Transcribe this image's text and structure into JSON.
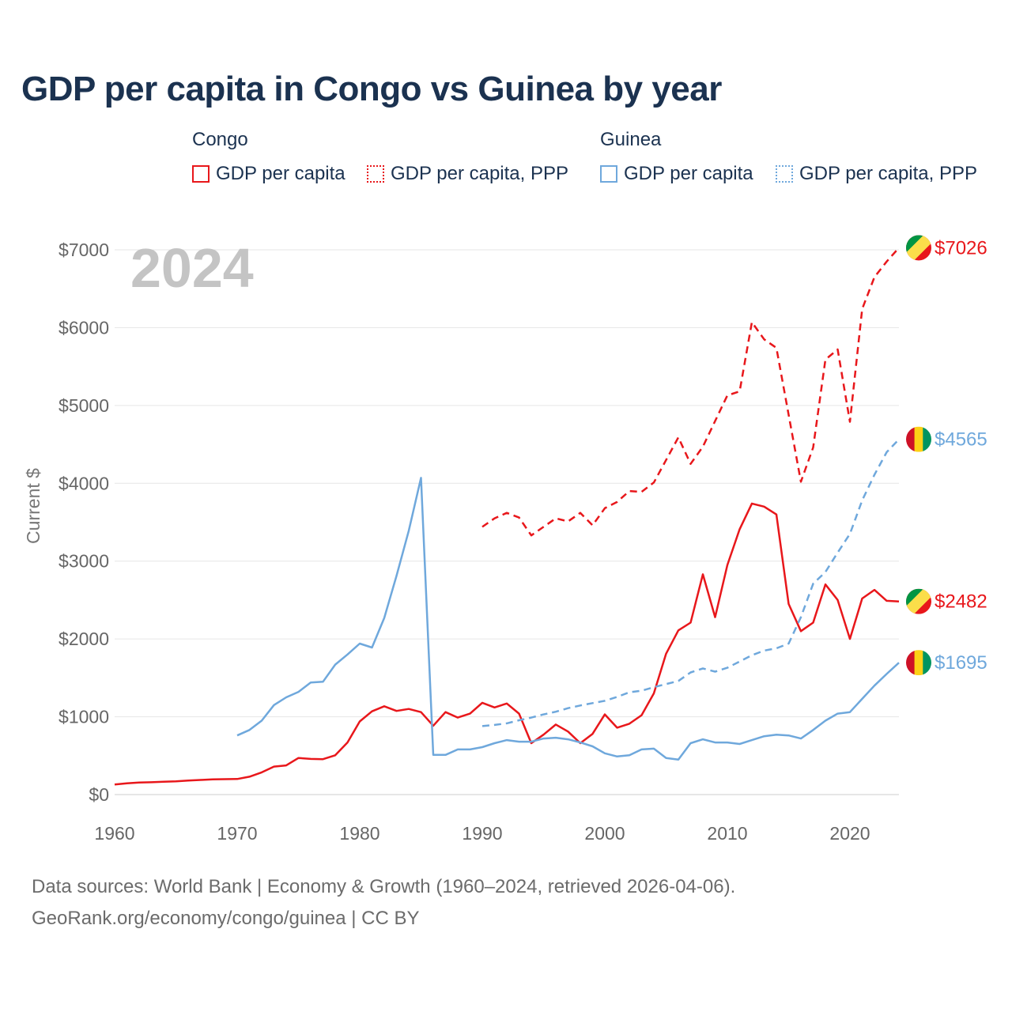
{
  "title": "GDP per capita in Congo vs Guinea by year",
  "legend": {
    "groups": [
      {
        "name": "Congo",
        "items": [
          {
            "label": "GDP per capita",
            "color": "#e8171b",
            "style": "solid"
          },
          {
            "label": "GDP per capita, PPP",
            "color": "#e8171b",
            "style": "dotted"
          }
        ]
      },
      {
        "name": "Guinea",
        "items": [
          {
            "label": "GDP per capita",
            "color": "#6fa8dc",
            "style": "solid"
          },
          {
            "label": "GDP per capita, PPP",
            "color": "#6fa8dc",
            "style": "dotted"
          }
        ]
      }
    ]
  },
  "footer": {
    "line1": "Data sources: World Bank | Economy & Growth (1960–2024, retrieved 2026-04-06).",
    "line2": "GeoRank.org/economy/congo/guinea | CC BY"
  },
  "chart_data": {
    "type": "line",
    "year_label": "2024",
    "ylabel": "Current $",
    "xlim": [
      1960,
      2024
    ],
    "ylim": [
      0,
      7000
    ],
    "x_ticks": [
      1960,
      1970,
      1980,
      1990,
      2000,
      2010,
      2020
    ],
    "y_ticks": [
      0,
      1000,
      2000,
      3000,
      4000,
      5000,
      6000,
      7000
    ],
    "y_tick_labels": [
      "$0",
      "$1000",
      "$2000",
      "$3000",
      "$4000",
      "$5000",
      "$6000",
      "$7000"
    ],
    "series": [
      {
        "name": "Congo GDP per capita",
        "color": "#e8171b",
        "dash": false,
        "end_label": "$2482",
        "flag": "congo",
        "x": [
          1960,
          1961,
          1962,
          1963,
          1964,
          1965,
          1966,
          1967,
          1968,
          1969,
          1970,
          1971,
          1972,
          1973,
          1974,
          1975,
          1976,
          1977,
          1978,
          1979,
          1980,
          1981,
          1982,
          1983,
          1984,
          1985,
          1986,
          1987,
          1988,
          1989,
          1990,
          1991,
          1992,
          1993,
          1994,
          1995,
          1996,
          1997,
          1998,
          1999,
          2000,
          2001,
          2002,
          2003,
          2004,
          2005,
          2006,
          2007,
          2008,
          2009,
          2010,
          2011,
          2012,
          2013,
          2014,
          2015,
          2016,
          2017,
          2018,
          2019,
          2020,
          2021,
          2022,
          2023,
          2024
        ],
        "values": [
          130,
          145,
          155,
          158,
          165,
          170,
          180,
          188,
          195,
          198,
          200,
          230,
          285,
          360,
          375,
          470,
          458,
          455,
          505,
          670,
          940,
          1070,
          1135,
          1075,
          1100,
          1060,
          885,
          1060,
          990,
          1040,
          1180,
          1120,
          1170,
          1040,
          660,
          770,
          900,
          810,
          660,
          780,
          1030,
          860,
          910,
          1020,
          1300,
          1810,
          2110,
          2210,
          2830,
          2280,
          2950,
          3410,
          3740,
          3700,
          3600,
          2450,
          2100,
          2210,
          2700,
          2500,
          2000,
          2520,
          2630,
          2490,
          2482
        ]
      },
      {
        "name": "Congo GDP per capita, PPP",
        "color": "#e8171b",
        "dash": true,
        "end_label": "$7026",
        "flag": "congo",
        "x": [
          1990,
          1991,
          1992,
          1993,
          1994,
          1995,
          1996,
          1997,
          1998,
          1999,
          2000,
          2001,
          2002,
          2003,
          2004,
          2005,
          2006,
          2007,
          2008,
          2009,
          2010,
          2011,
          2012,
          2013,
          2014,
          2015,
          2016,
          2017,
          2018,
          2019,
          2020,
          2021,
          2022,
          2023,
          2024
        ],
        "values": [
          3440,
          3550,
          3620,
          3560,
          3330,
          3440,
          3550,
          3510,
          3620,
          3460,
          3680,
          3760,
          3900,
          3890,
          4010,
          4300,
          4590,
          4250,
          4470,
          4800,
          5130,
          5180,
          6070,
          5850,
          5740,
          4880,
          4020,
          4460,
          5590,
          5720,
          4790,
          6240,
          6650,
          6850,
          7026
        ]
      },
      {
        "name": "Guinea GDP per capita",
        "color": "#6fa8dc",
        "dash": false,
        "end_label": "$1695",
        "flag": "guinea",
        "x": [
          1970,
          1971,
          1972,
          1973,
          1974,
          1975,
          1976,
          1977,
          1978,
          1979,
          1980,
          1981,
          1982,
          1983,
          1984,
          1985,
          1986,
          1987,
          1988,
          1989,
          1990,
          1991,
          1992,
          1993,
          1994,
          1995,
          1996,
          1997,
          1998,
          1999,
          2000,
          2001,
          2002,
          2003,
          2004,
          2005,
          2006,
          2007,
          2008,
          2009,
          2010,
          2011,
          2012,
          2013,
          2014,
          2015,
          2016,
          2017,
          2018,
          2019,
          2020,
          2021,
          2022,
          2023,
          2024
        ],
        "values": [
          760,
          830,
          950,
          1150,
          1250,
          1320,
          1440,
          1450,
          1670,
          1800,
          1940,
          1890,
          2270,
          2810,
          3390,
          4070,
          510,
          510,
          580,
          580,
          610,
          660,
          700,
          680,
          680,
          720,
          730,
          710,
          670,
          620,
          530,
          490,
          505,
          580,
          590,
          470,
          450,
          660,
          710,
          670,
          670,
          650,
          700,
          750,
          770,
          760,
          720,
          830,
          950,
          1040,
          1060,
          1230,
          1400,
          1550,
          1695
        ]
      },
      {
        "name": "Guinea GDP per capita, PPP",
        "color": "#6fa8dc",
        "dash": true,
        "end_label": "$4565",
        "flag": "guinea",
        "x": [
          1990,
          1991,
          1992,
          1993,
          1994,
          1995,
          1996,
          1997,
          1998,
          1999,
          2000,
          2001,
          2002,
          2003,
          2004,
          2005,
          2006,
          2007,
          2008,
          2009,
          2010,
          2011,
          2012,
          2013,
          2014,
          2015,
          2016,
          2017,
          2018,
          2019,
          2020,
          2021,
          2022,
          2023,
          2024
        ],
        "values": [
          880,
          895,
          915,
          955,
          990,
          1030,
          1065,
          1110,
          1145,
          1175,
          1205,
          1255,
          1315,
          1335,
          1380,
          1420,
          1460,
          1570,
          1620,
          1580,
          1630,
          1710,
          1790,
          1850,
          1880,
          1940,
          2280,
          2710,
          2860,
          3110,
          3350,
          3780,
          4110,
          4400,
          4565
        ]
      }
    ]
  }
}
